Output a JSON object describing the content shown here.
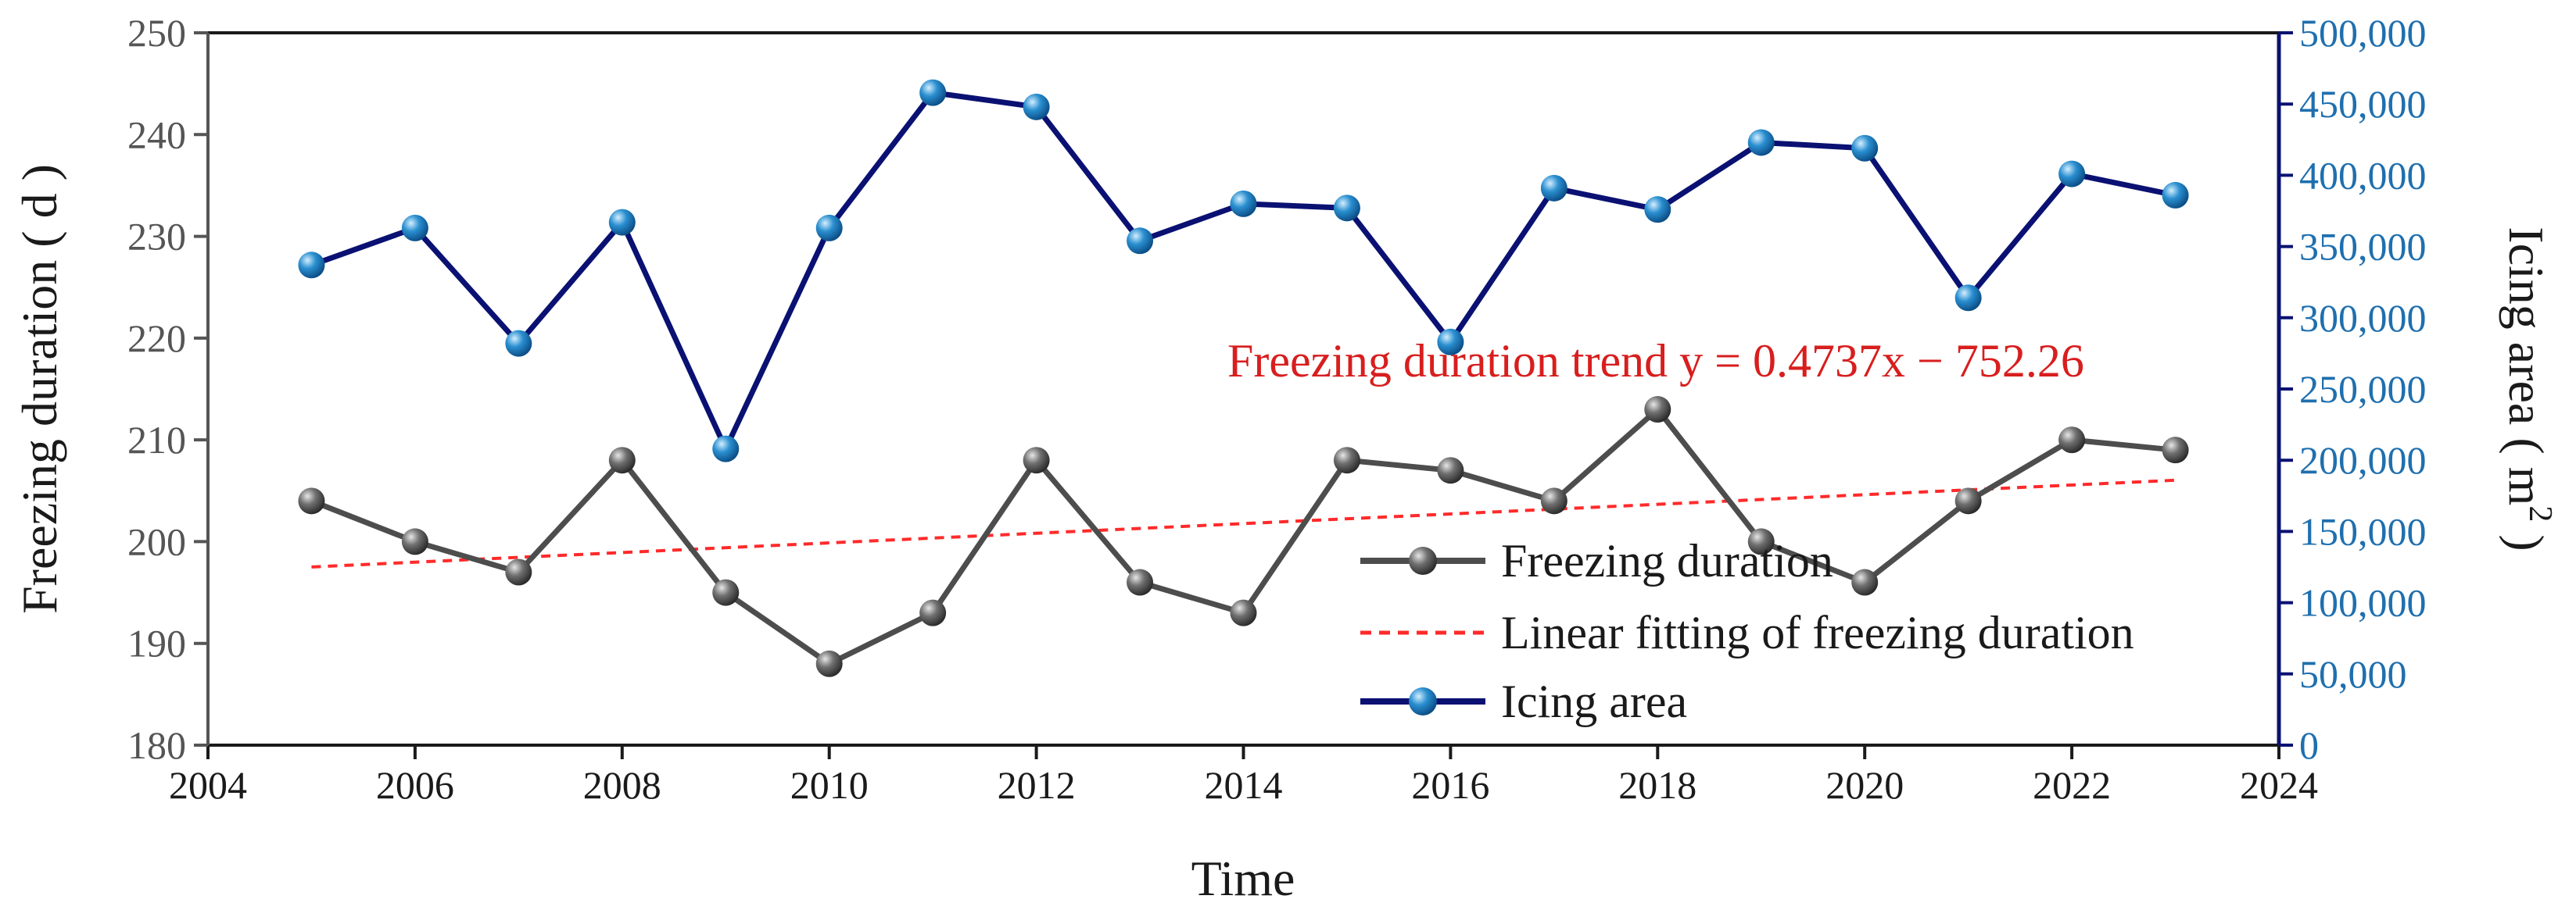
{
  "chart_data": {
    "type": "line",
    "xlabel": "Time",
    "ylabel_left": "Freezing duration ( d )",
    "ylabel_right_main": "Icing area ( m",
    "ylabel_right_sup": "2",
    "ylabel_right_close": " )",
    "xlim": [
      2004,
      2024
    ],
    "x_ticks": [
      2004,
      2006,
      2008,
      2010,
      2012,
      2014,
      2016,
      2018,
      2020,
      2022,
      2024
    ],
    "y_left_lim": [
      180,
      250
    ],
    "y_left_ticks": [
      180,
      190,
      200,
      210,
      220,
      230,
      240,
      250
    ],
    "y_right_lim": [
      0,
      500000
    ],
    "y_right_ticks": [
      0,
      50000,
      100000,
      150000,
      200000,
      250000,
      300000,
      350000,
      400000,
      450000,
      500000
    ],
    "y_right_tick_labels": [
      "0",
      "50,000",
      "100,000",
      "150,000",
      "200,000",
      "250,000",
      "300,000",
      "350,000",
      "400,000",
      "450,000",
      "500,000"
    ],
    "x": [
      2005,
      2006,
      2007,
      2008,
      2009,
      2010,
      2011,
      2012,
      2013,
      2014,
      2015,
      2016,
      2017,
      2018,
      2019,
      2020,
      2021,
      2022,
      2023
    ],
    "series": [
      {
        "name": "Freezing duration",
        "axis": "left",
        "color": "#4d4d4d",
        "values": [
          204,
          200,
          197,
          208,
          195,
          188,
          193,
          208,
          196,
          193,
          208,
          207,
          204,
          213,
          200,
          196,
          204,
          210,
          209
        ]
      },
      {
        "name": "Linear fitting of freezing duration",
        "axis": "left",
        "color": "#ff2a2a",
        "line_style": "dashed",
        "x_range": [
          2005,
          2023
        ],
        "slope": 0.4737,
        "intercept": -752.26
      },
      {
        "name": "Icing area",
        "axis": "right",
        "color": "#0a1172",
        "marker_color": "#2a8fd0",
        "values": [
          337000,
          363000,
          282000,
          367000,
          208000,
          363000,
          458000,
          448000,
          354000,
          380000,
          377000,
          283000,
          391000,
          376000,
          423000,
          419000,
          314000,
          401000,
          386000
        ]
      }
    ],
    "annotation": "Freezing duration trend y = 0.4737x − 752.26",
    "legend_position": "lower-right inside",
    "grid": false
  }
}
